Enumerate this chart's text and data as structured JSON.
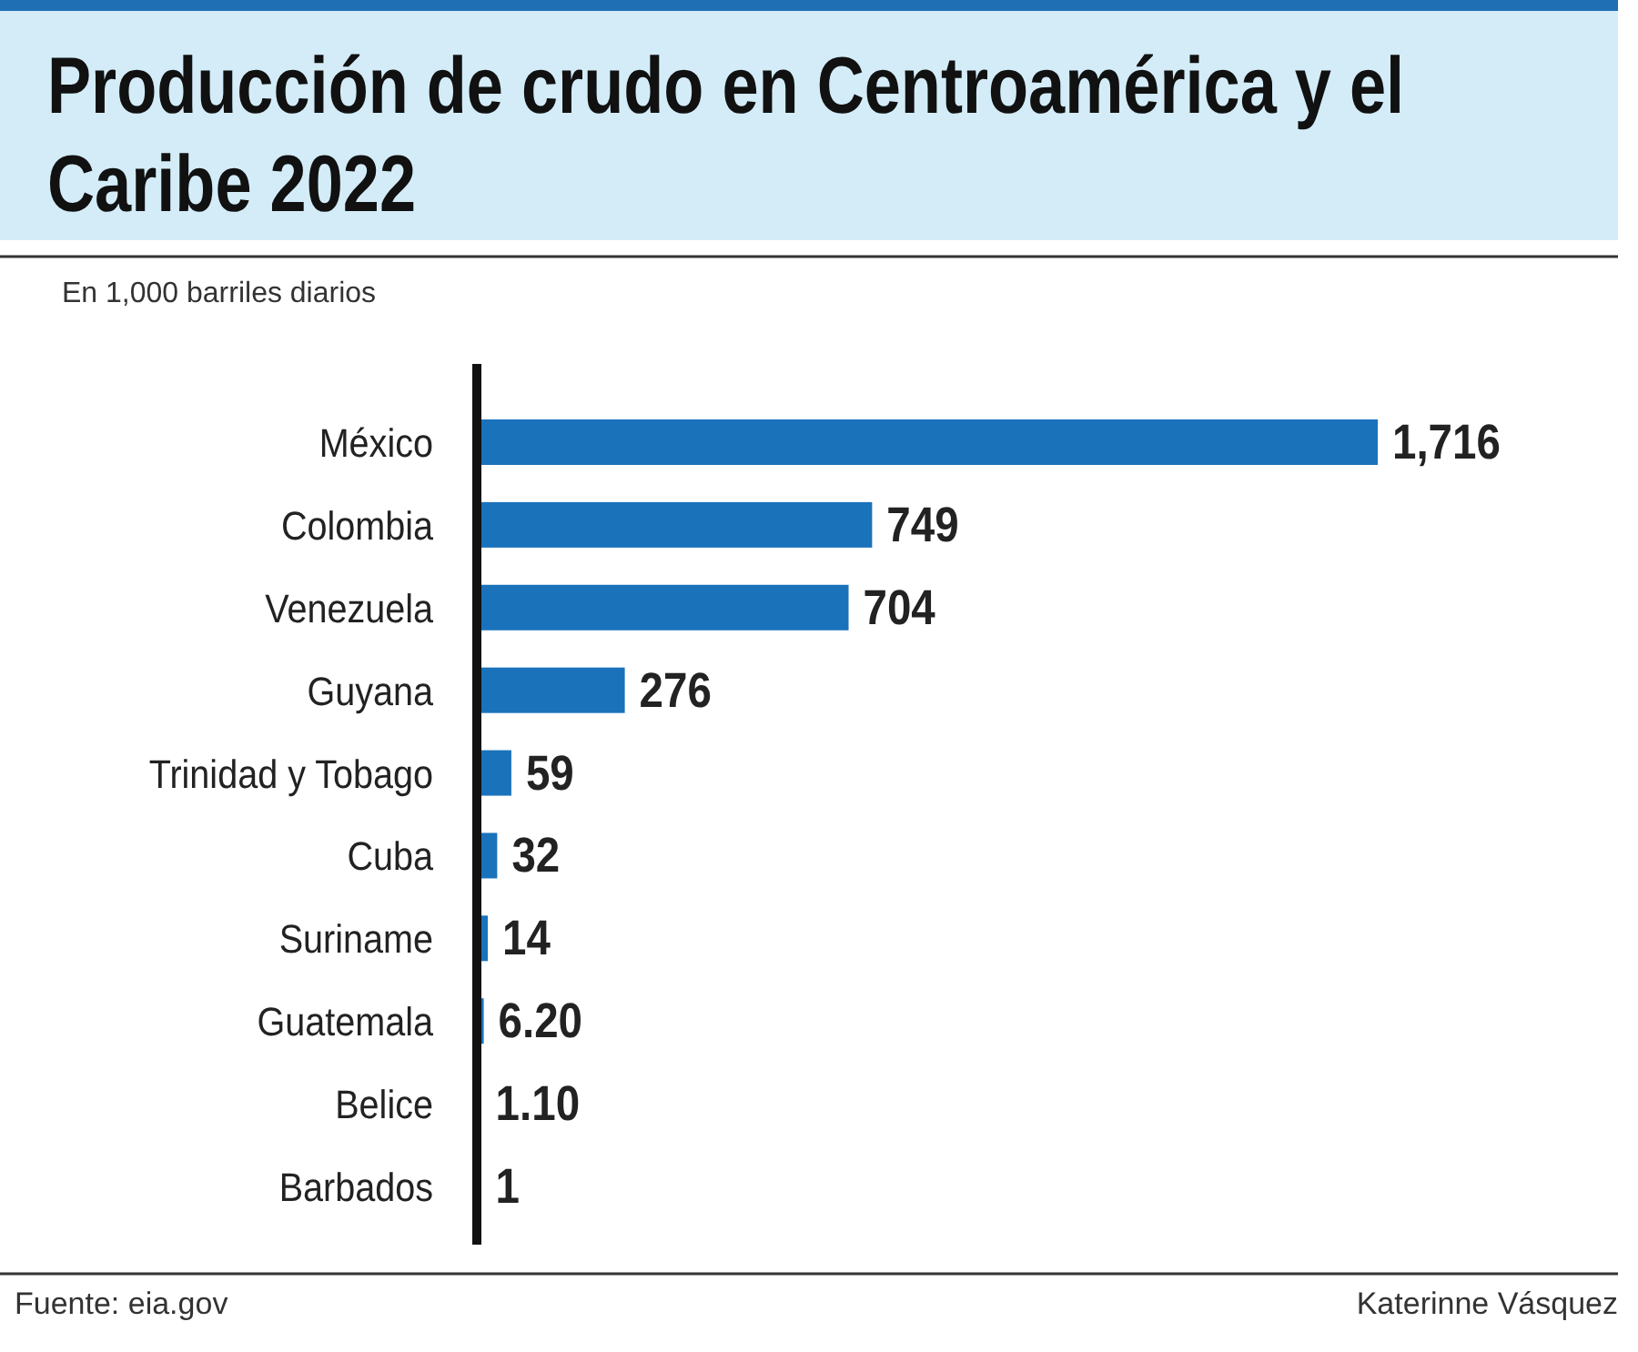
{
  "chart_data": {
    "type": "bar",
    "orientation": "horizontal",
    "title": "Producción de crudo en Centroamérica y el Caribe 2022",
    "subtitle": "En 1,000 barriles diarios",
    "categories": [
      "México",
      "Colombia",
      "Venezuela",
      "Guyana",
      "Trinidad y Tobago",
      "Cuba",
      "Suriname",
      "Guatemala",
      "Belice",
      "Barbados"
    ],
    "values": [
      1716,
      749,
      704,
      276,
      59,
      32,
      14,
      6.2,
      1.1,
      1
    ],
    "value_labels": [
      "1,716",
      "749",
      "704",
      "276",
      "59",
      "32",
      "14",
      "6.20",
      "1.10",
      "1"
    ],
    "color": "#1a72bb",
    "tick_labels": "y",
    "annotations": [
      "Fuente: eia.gov",
      "Katerinne Vásquez"
    ]
  }
}
